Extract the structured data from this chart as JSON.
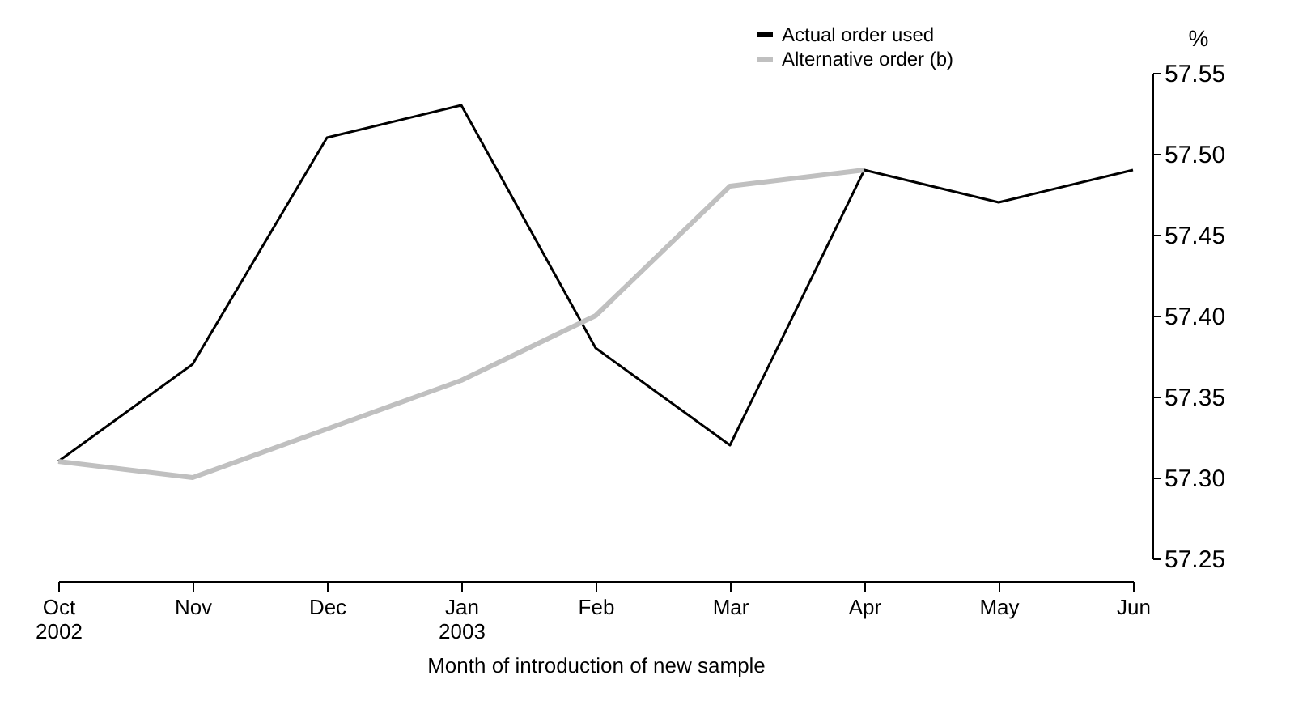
{
  "chart_data": {
    "type": "line",
    "categories": [
      "Oct\n2002",
      "Nov",
      "Dec",
      "Jan\n2003",
      "Feb",
      "Mar",
      "Apr",
      "May",
      "Jun"
    ],
    "xlabel": "Month of introduction of new sample",
    "ylabel": "%",
    "series": [
      {
        "name": "Actual order used",
        "color": "#000000",
        "values": [
          57.31,
          57.37,
          57.51,
          57.53,
          57.38,
          57.32,
          57.49,
          57.47,
          57.49
        ]
      },
      {
        "name": "Alternative order (b)",
        "color": "#c0c0c0",
        "values": [
          57.31,
          57.3,
          57.33,
          57.36,
          57.4,
          57.48,
          57.49,
          null,
          null
        ]
      }
    ],
    "ylim": [
      57.25,
      57.55
    ],
    "yticks": [
      57.25,
      {
        "value": 57.3,
        "label": "57.30"
      },
      57.35,
      {
        "value": 57.4,
        "label": "57.40"
      },
      57.45,
      {
        "value": 57.5,
        "label": "57.50"
      },
      57.55
    ],
    "grid": false,
    "legend": "top right"
  }
}
